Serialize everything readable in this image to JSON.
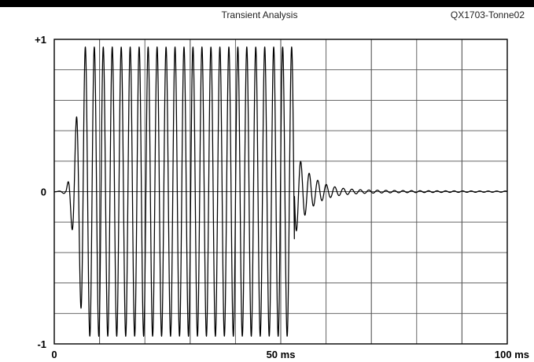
{
  "header": {
    "title": "Transient Analysis",
    "source_id": "QX1703-Tonne02"
  },
  "chart_data": {
    "type": "line",
    "title": "Transient Analysis",
    "xlabel": "",
    "ylabel": "",
    "xlim": [
      0,
      100
    ],
    "ylim": [
      -1,
      1
    ],
    "grid": true,
    "x_ticks": [
      "0",
      "50 ms",
      "100 ms"
    ],
    "y_ticks": [
      "+1",
      "0",
      "-1"
    ],
    "series": [
      {
        "signal": "tone burst",
        "onset_ms": 2.5,
        "ramp_end_ms": 6.5,
        "burst_end_ms": 53,
        "period_ms": 1.98,
        "peak_amplitude": 0.95,
        "decay_tail_end_ms": 100
      }
    ],
    "colors": {
      "line": "#000000",
      "grid": "#555555"
    }
  }
}
